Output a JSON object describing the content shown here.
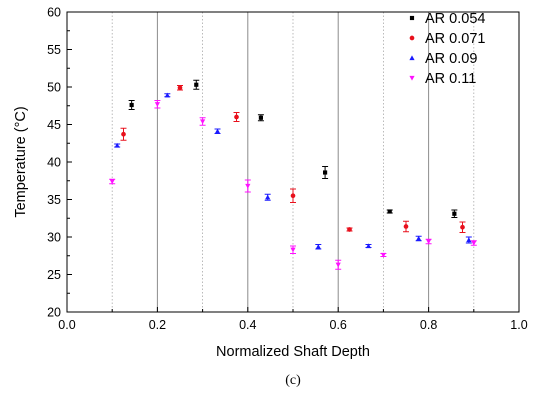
{
  "caption": "(c)",
  "chart_data": {
    "type": "scatter",
    "title": "",
    "xlabel": "Normalized Shaft Depth",
    "ylabel": "Temperature (°C)",
    "xlim": [
      0.0,
      1.0
    ],
    "ylim": [
      20,
      60
    ],
    "xticks": [
      0.0,
      0.2,
      0.4,
      0.6,
      0.8,
      1.0
    ],
    "xtick_labels": [
      "0.0",
      "0.2",
      "0.4",
      "0.6",
      "0.8",
      "1.0"
    ],
    "yticks": [
      20,
      25,
      30,
      35,
      40,
      45,
      50,
      55,
      60
    ],
    "ytick_labels": [
      "20",
      "25",
      "30",
      "35",
      "40",
      "45",
      "50",
      "55",
      "60"
    ],
    "grid": "vertical lines at x = 0.1 to 0.9",
    "legend_position": "top-right",
    "error_bars": true,
    "series": [
      {
        "name": "AR 0.054",
        "color": "#000000",
        "marker": "square",
        "x": [
          0.143,
          0.286,
          0.429,
          0.571,
          0.714,
          0.857
        ],
        "y": [
          47.6,
          50.3,
          45.9,
          38.6,
          33.4,
          33.1
        ],
        "err": [
          0.6,
          0.6,
          0.4,
          0.8,
          0.2,
          0.5
        ]
      },
      {
        "name": "AR 0.071",
        "color": "#e8101c",
        "marker": "circle",
        "x": [
          0.125,
          0.25,
          0.375,
          0.5,
          0.625,
          0.75,
          0.875
        ],
        "y": [
          43.7,
          49.9,
          46.0,
          35.5,
          31.0,
          31.4,
          31.3
        ],
        "err": [
          0.8,
          0.3,
          0.6,
          0.9,
          0.2,
          0.7,
          0.7
        ]
      },
      {
        "name": "AR 0.09",
        "color": "#1a1aff",
        "marker": "triangle-up",
        "x": [
          0.111,
          0.222,
          0.333,
          0.444,
          0.556,
          0.667,
          0.778,
          0.889
        ],
        "y": [
          42.2,
          48.9,
          44.1,
          35.3,
          28.7,
          28.8,
          29.8,
          29.6
        ],
        "err": [
          0.2,
          0.2,
          0.3,
          0.4,
          0.3,
          0.2,
          0.3,
          0.4
        ]
      },
      {
        "name": "AR 0.11",
        "color": "#ff10ff",
        "marker": "triangle-down",
        "x": [
          0.1,
          0.2,
          0.3,
          0.4,
          0.5,
          0.6,
          0.7,
          0.8,
          0.9
        ],
        "y": [
          37.4,
          47.7,
          45.4,
          36.8,
          28.3,
          26.3,
          27.6,
          29.4,
          29.2
        ],
        "err": [
          0.3,
          0.5,
          0.5,
          0.8,
          0.5,
          0.6,
          0.2,
          0.3,
          0.3
        ]
      }
    ]
  }
}
